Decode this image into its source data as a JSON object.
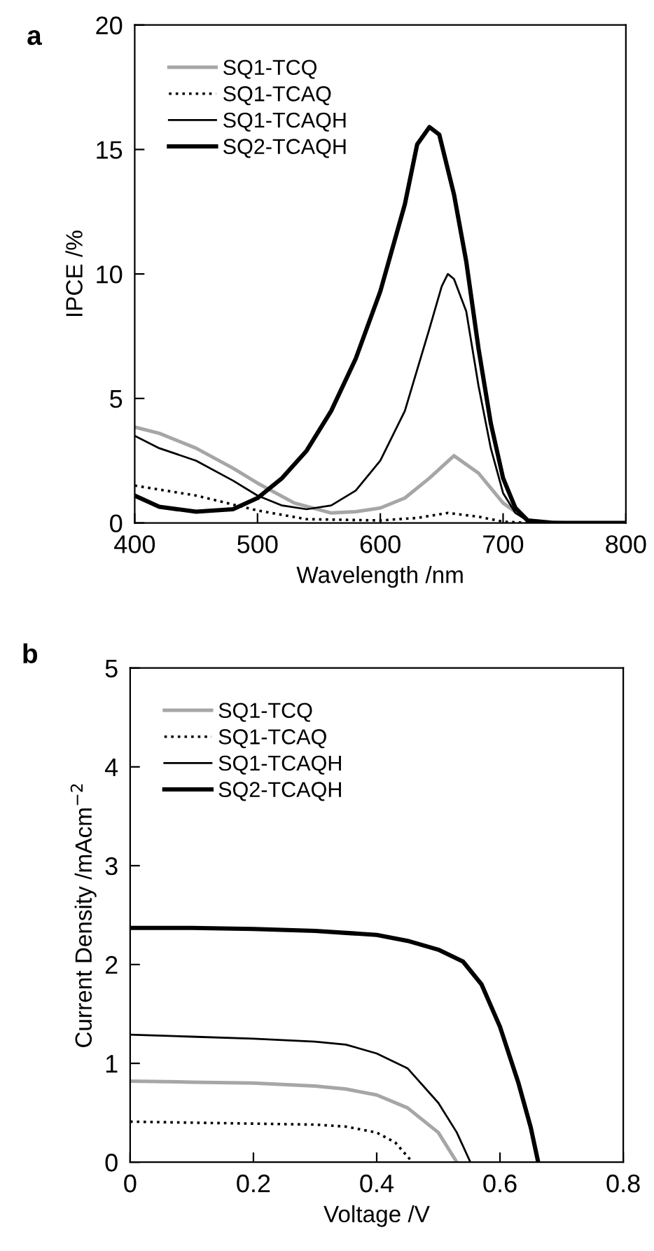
{
  "chart_data": [
    {
      "type": "line",
      "title": "a",
      "xlabel": "Wavelength /nm",
      "ylabel": "IPCE /%",
      "xlim": [
        400,
        800
      ],
      "ylim": [
        0,
        20
      ],
      "xticks": [
        400,
        500,
        600,
        700,
        800
      ],
      "yticks": [
        0,
        5,
        10,
        15,
        20
      ],
      "legend": "top left",
      "grid": false,
      "series": [
        {
          "name": "SQ1-TCQ",
          "color": "#a6a6a6",
          "line_style": "solid",
          "x": [
            400,
            420,
            450,
            480,
            500,
            530,
            560,
            580,
            600,
            620,
            640,
            660,
            680,
            700,
            720,
            750,
            800
          ],
          "values": [
            3.85,
            3.6,
            3.0,
            2.2,
            1.6,
            0.8,
            0.4,
            0.45,
            0.6,
            1.0,
            1.8,
            2.7,
            2.0,
            0.8,
            0.1,
            0,
            0
          ]
        },
        {
          "name": "SQ1-TCAQ",
          "color": "#000000",
          "line_style": "dotted",
          "x": [
            400,
            450,
            500,
            540,
            600,
            630,
            655,
            680,
            700,
            720,
            800
          ],
          "values": [
            1.5,
            1.1,
            0.5,
            0.15,
            0.1,
            0.2,
            0.4,
            0.25,
            0.05,
            0,
            0
          ]
        },
        {
          "name": "SQ1-TCAQH",
          "color": "#000000",
          "line_style": "solid",
          "x": [
            400,
            420,
            450,
            480,
            500,
            520,
            540,
            560,
            580,
            600,
            620,
            640,
            650,
            655,
            660,
            670,
            680,
            690,
            700,
            710,
            720,
            740,
            800
          ],
          "values": [
            3.5,
            3.0,
            2.5,
            1.7,
            1.1,
            0.7,
            0.55,
            0.7,
            1.3,
            2.5,
            4.5,
            7.8,
            9.5,
            10.0,
            9.8,
            8.5,
            5.5,
            3.0,
            1.2,
            0.4,
            0.1,
            0,
            0
          ]
        },
        {
          "name": "SQ2-TCAQH",
          "color": "#000000",
          "line_style": "solid",
          "x": [
            400,
            420,
            450,
            480,
            500,
            520,
            540,
            560,
            580,
            600,
            620,
            630,
            640,
            648,
            660,
            670,
            680,
            690,
            700,
            710,
            720,
            740,
            800
          ],
          "values": [
            1.1,
            0.65,
            0.45,
            0.55,
            1.0,
            1.8,
            2.9,
            4.5,
            6.6,
            9.3,
            12.8,
            15.2,
            15.9,
            15.6,
            13.2,
            10.5,
            7.0,
            4.0,
            1.8,
            0.6,
            0.1,
            0,
            0
          ]
        }
      ]
    },
    {
      "type": "line",
      "title": "b",
      "xlabel": "Voltage /V",
      "ylabel": "Current Density /mAcm$^{−2}$",
      "xlim": [
        0,
        0.8
      ],
      "ylim": [
        0,
        5
      ],
      "xticks": [
        0,
        0.2,
        0.4,
        0.6,
        0.8
      ],
      "yticks": [
        0,
        1,
        2,
        3,
        4,
        5
      ],
      "legend": "top left",
      "grid": false,
      "series": [
        {
          "name": "SQ1-TCQ",
          "color": "#a6a6a6",
          "line_style": "solid",
          "x": [
            0,
            0.1,
            0.2,
            0.3,
            0.35,
            0.4,
            0.45,
            0.5,
            0.53
          ],
          "values": [
            0.82,
            0.81,
            0.8,
            0.77,
            0.74,
            0.68,
            0.55,
            0.3,
            0
          ]
        },
        {
          "name": "SQ1-TCAQ",
          "color": "#000000",
          "line_style": "dotted",
          "x": [
            0,
            0.1,
            0.2,
            0.3,
            0.35,
            0.4,
            0.43,
            0.458
          ],
          "values": [
            0.41,
            0.4,
            0.39,
            0.38,
            0.36,
            0.3,
            0.2,
            0
          ]
        },
        {
          "name": "SQ1-TCAQH",
          "color": "#000000",
          "line_style": "solid",
          "x": [
            0,
            0.1,
            0.2,
            0.3,
            0.35,
            0.4,
            0.45,
            0.5,
            0.53,
            0.552
          ],
          "values": [
            1.29,
            1.27,
            1.25,
            1.22,
            1.19,
            1.1,
            0.95,
            0.6,
            0.3,
            0
          ]
        },
        {
          "name": "SQ2-TCAQH",
          "color": "#000000",
          "line_style": "solid",
          "x": [
            0,
            0.1,
            0.2,
            0.3,
            0.35,
            0.4,
            0.45,
            0.5,
            0.54,
            0.57,
            0.6,
            0.63,
            0.65,
            0.662
          ],
          "values": [
            2.37,
            2.37,
            2.36,
            2.34,
            2.32,
            2.3,
            2.24,
            2.15,
            2.03,
            1.8,
            1.37,
            0.8,
            0.35,
            0
          ]
        }
      ]
    }
  ]
}
